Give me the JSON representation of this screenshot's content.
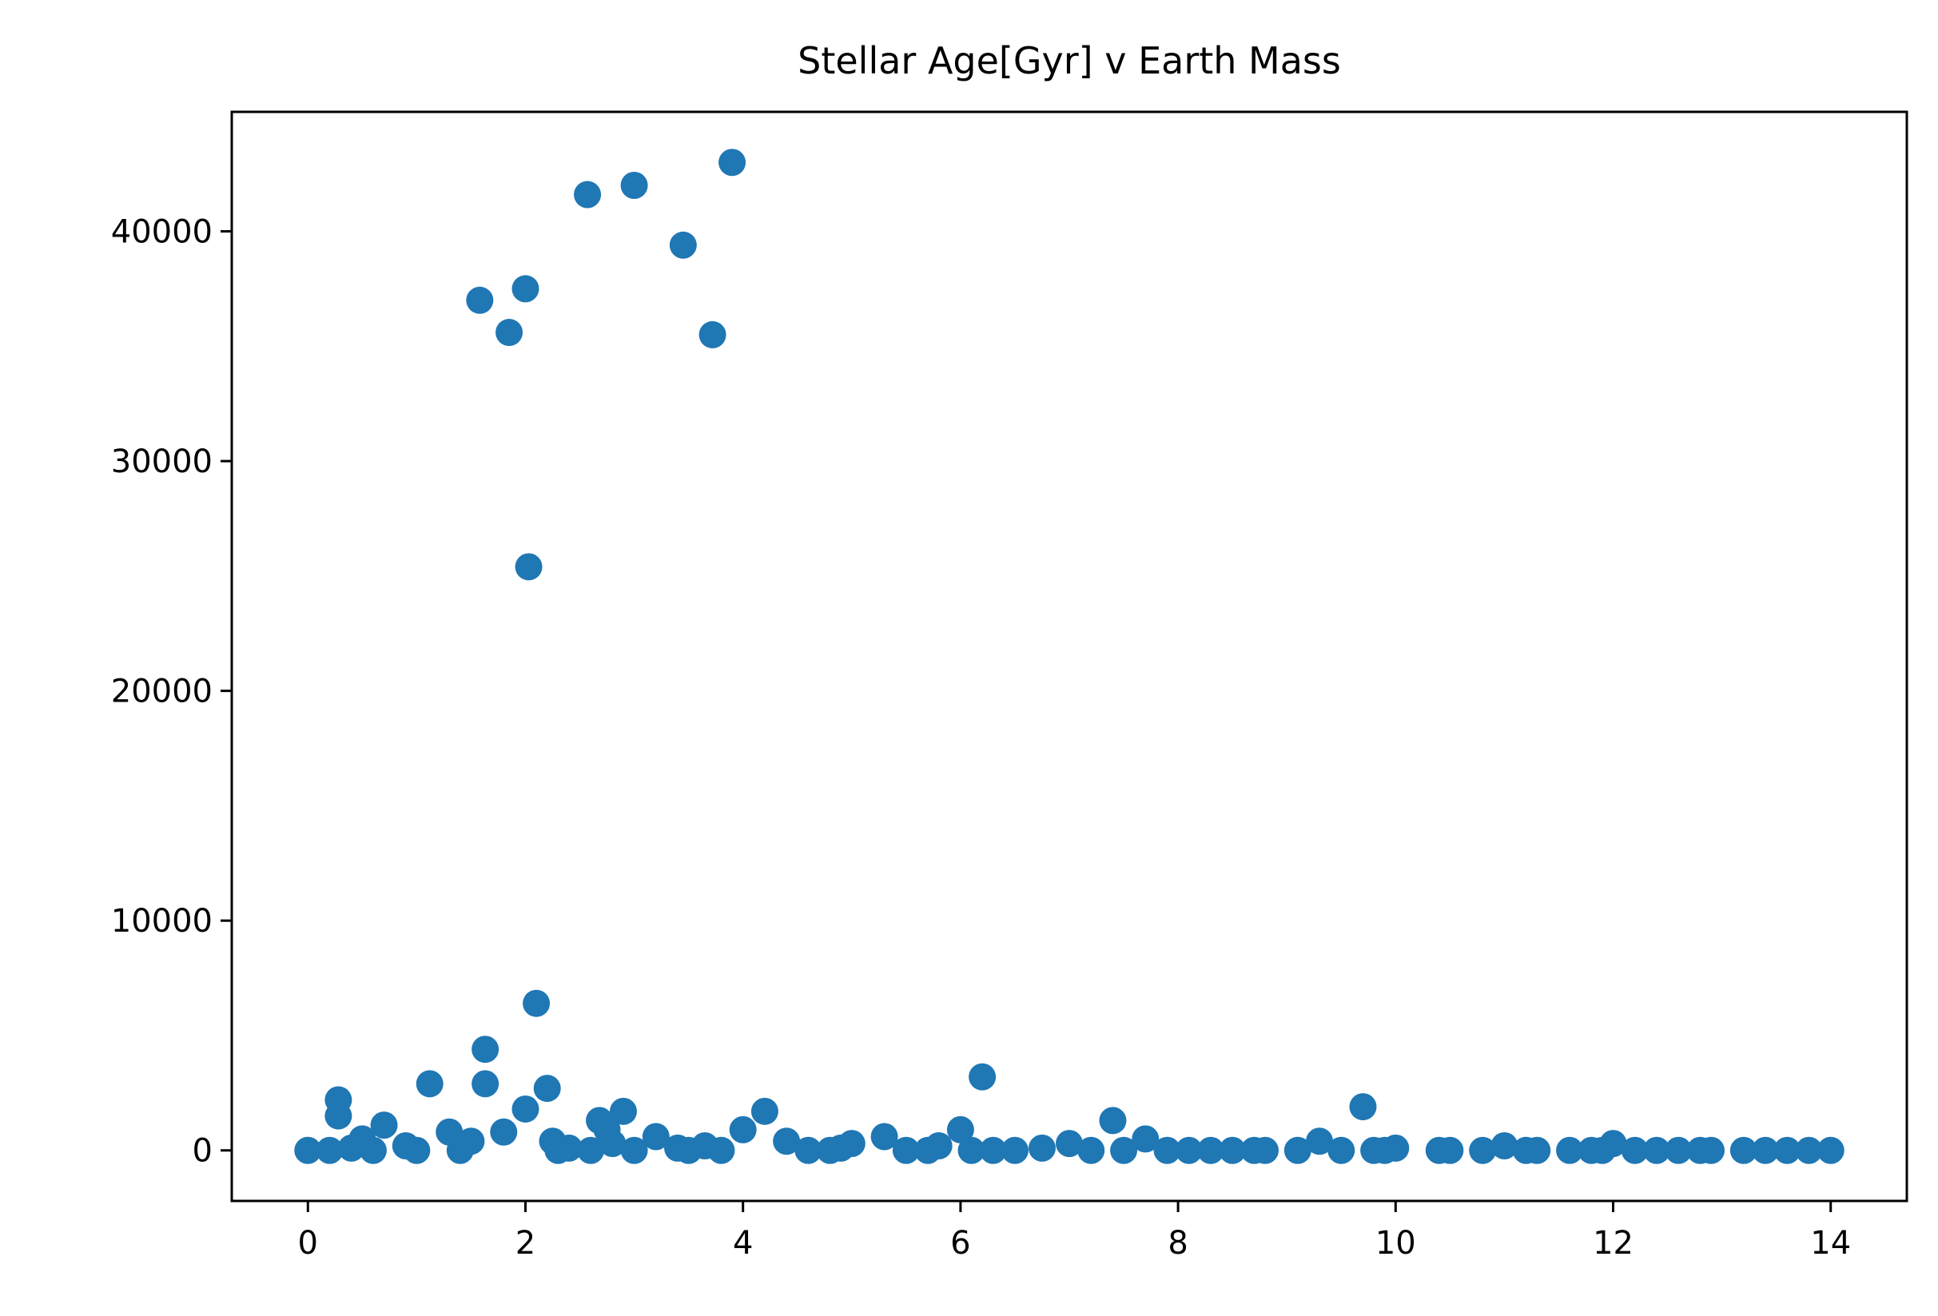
{
  "chart_data": {
    "type": "scatter",
    "title": "Stellar Age[Gyr] v Earth Mass",
    "xlabel": "",
    "ylabel": "",
    "xlim": [
      -0.7,
      14.7
    ],
    "ylim": [
      -2200,
      45200
    ],
    "xticks": [
      0,
      2,
      4,
      6,
      8,
      10,
      12,
      14
    ],
    "yticks": [
      0,
      10000,
      20000,
      30000,
      40000
    ],
    "grid": false,
    "marker_color": "#1f77b4",
    "series": [
      {
        "x": [
          3.9,
          3.0,
          2.57,
          3.45,
          2.0,
          1.58,
          1.85,
          3.72,
          2.03,
          2.1,
          1.63,
          6.2,
          1.12,
          1.63,
          2.2,
          0.28,
          9.7,
          4.2,
          2.9,
          2.0,
          0.28,
          2.68,
          7.4,
          0.7,
          6.0,
          2.75,
          4.0,
          1.3,
          1.8,
          5.3,
          3.2,
          7.7,
          0.5,
          4.4,
          1.5,
          2.25,
          9.3,
          5.0,
          2.8,
          12.0,
          7.0,
          11.0,
          0.9,
          3.65,
          5.8,
          6.75,
          4.9,
          10.0,
          3.4,
          0.4,
          2.4,
          0.0,
          0.2,
          0.6,
          1.0,
          1.4,
          2.3,
          2.6,
          3.0,
          3.5,
          3.8,
          4.6,
          4.8,
          5.5,
          5.7,
          6.3,
          6.5,
          7.2,
          7.9,
          8.1,
          8.3,
          8.5,
          8.7,
          8.8,
          9.1,
          9.5,
          9.9,
          10.4,
          10.5,
          10.8,
          11.2,
          11.3,
          11.6,
          11.8,
          11.9,
          12.2,
          12.4,
          12.6,
          12.9,
          13.2,
          13.4,
          13.6,
          13.8,
          14.0,
          12.8,
          9.8,
          7.5,
          6.1
        ],
        "y": [
          43000,
          42000,
          41600,
          39400,
          37500,
          37000,
          35600,
          35500,
          25400,
          6400,
          4400,
          3200,
          2900,
          2900,
          2700,
          2200,
          1900,
          1700,
          1700,
          1800,
          1500,
          1300,
          1300,
          1100,
          900,
          900,
          900,
          800,
          800,
          600,
          600,
          500,
          500,
          400,
          400,
          400,
          400,
          300,
          300,
          300,
          300,
          200,
          200,
          200,
          200,
          100,
          100,
          100,
          100,
          100,
          100,
          0,
          0,
          0,
          0,
          0,
          0,
          0,
          0,
          0,
          0,
          0,
          0,
          0,
          0,
          0,
          0,
          0,
          0,
          0,
          0,
          0,
          0,
          0,
          0,
          0,
          0,
          0,
          0,
          0,
          0,
          0,
          0,
          0,
          0,
          0,
          0,
          0,
          0,
          0,
          0,
          0,
          0,
          0,
          0,
          0,
          0,
          0
        ]
      }
    ]
  }
}
